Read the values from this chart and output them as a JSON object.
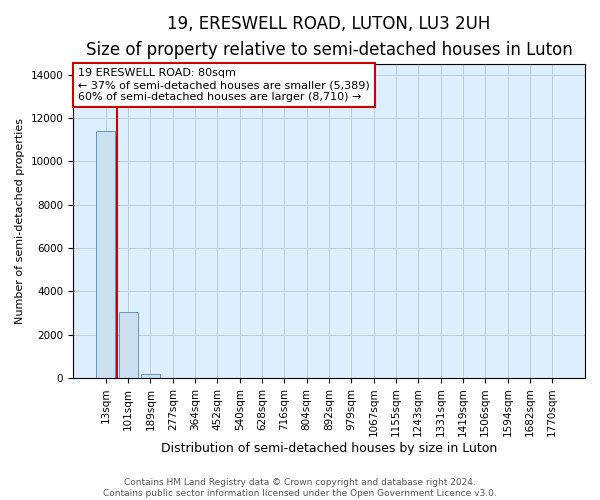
{
  "title": "19, ERESWELL ROAD, LUTON, LU3 2UH",
  "subtitle": "Size of property relative to semi-detached houses in Luton",
  "xlabel": "Distribution of semi-detached houses by size in Luton",
  "ylabel": "Number of semi-detached properties",
  "bar_labels": [
    "13sqm",
    "101sqm",
    "189sqm",
    "277sqm",
    "364sqm",
    "452sqm",
    "540sqm",
    "628sqm",
    "716sqm",
    "804sqm",
    "892sqm",
    "979sqm",
    "1067sqm",
    "1155sqm",
    "1243sqm",
    "1331sqm",
    "1419sqm",
    "1506sqm",
    "1594sqm",
    "1682sqm",
    "1770sqm"
  ],
  "bar_values": [
    11400,
    3050,
    180,
    0,
    0,
    0,
    0,
    0,
    0,
    0,
    0,
    0,
    0,
    0,
    0,
    0,
    0,
    0,
    0,
    0,
    0
  ],
  "bar_color": "#cce0f0",
  "bar_edge_color": "#5599cc",
  "annotation_line1": "19 ERESWELL ROAD: 80sqm",
  "annotation_line2": "← 37% of semi-detached houses are smaller (5,389)",
  "annotation_line3": "60% of semi-detached houses are larger (8,710) →",
  "vline_color": "#cc0000",
  "annotation_box_color": "#cc0000",
  "ylim": [
    0,
    14500
  ],
  "yticks": [
    0,
    2000,
    4000,
    6000,
    8000,
    10000,
    12000,
    14000
  ],
  "grid_color": "#bbccdd",
  "bg_color": "#ddeeff",
  "footnote": "Contains HM Land Registry data © Crown copyright and database right 2024.\nContains public sector information licensed under the Open Government Licence v3.0.",
  "title_fontsize": 12,
  "subtitle_fontsize": 10,
  "xlabel_fontsize": 9,
  "ylabel_fontsize": 8,
  "tick_fontsize": 7.5,
  "annotation_fontsize": 8,
  "footnote_fontsize": 6.5
}
